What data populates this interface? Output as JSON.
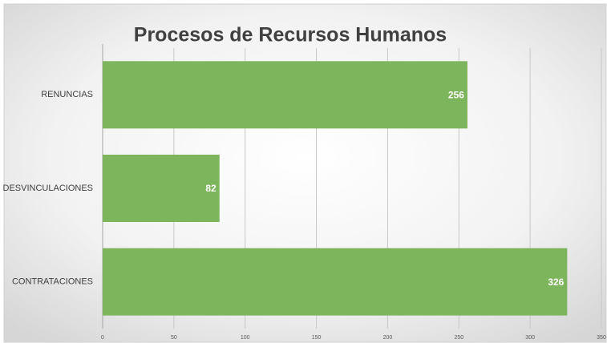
{
  "chart_data": {
    "type": "bar",
    "orientation": "horizontal",
    "title": "Procesos de Recursos Humanos",
    "categories": [
      "RENUNCIAS",
      "DESVINCULACIONES",
      "CONTRATACIONES"
    ],
    "values": [
      256,
      82,
      326
    ],
    "color": "#7cb55c",
    "xlim": [
      0,
      350
    ],
    "xticks": [
      0,
      50,
      100,
      150,
      200,
      250,
      300,
      350
    ],
    "grid": true
  }
}
